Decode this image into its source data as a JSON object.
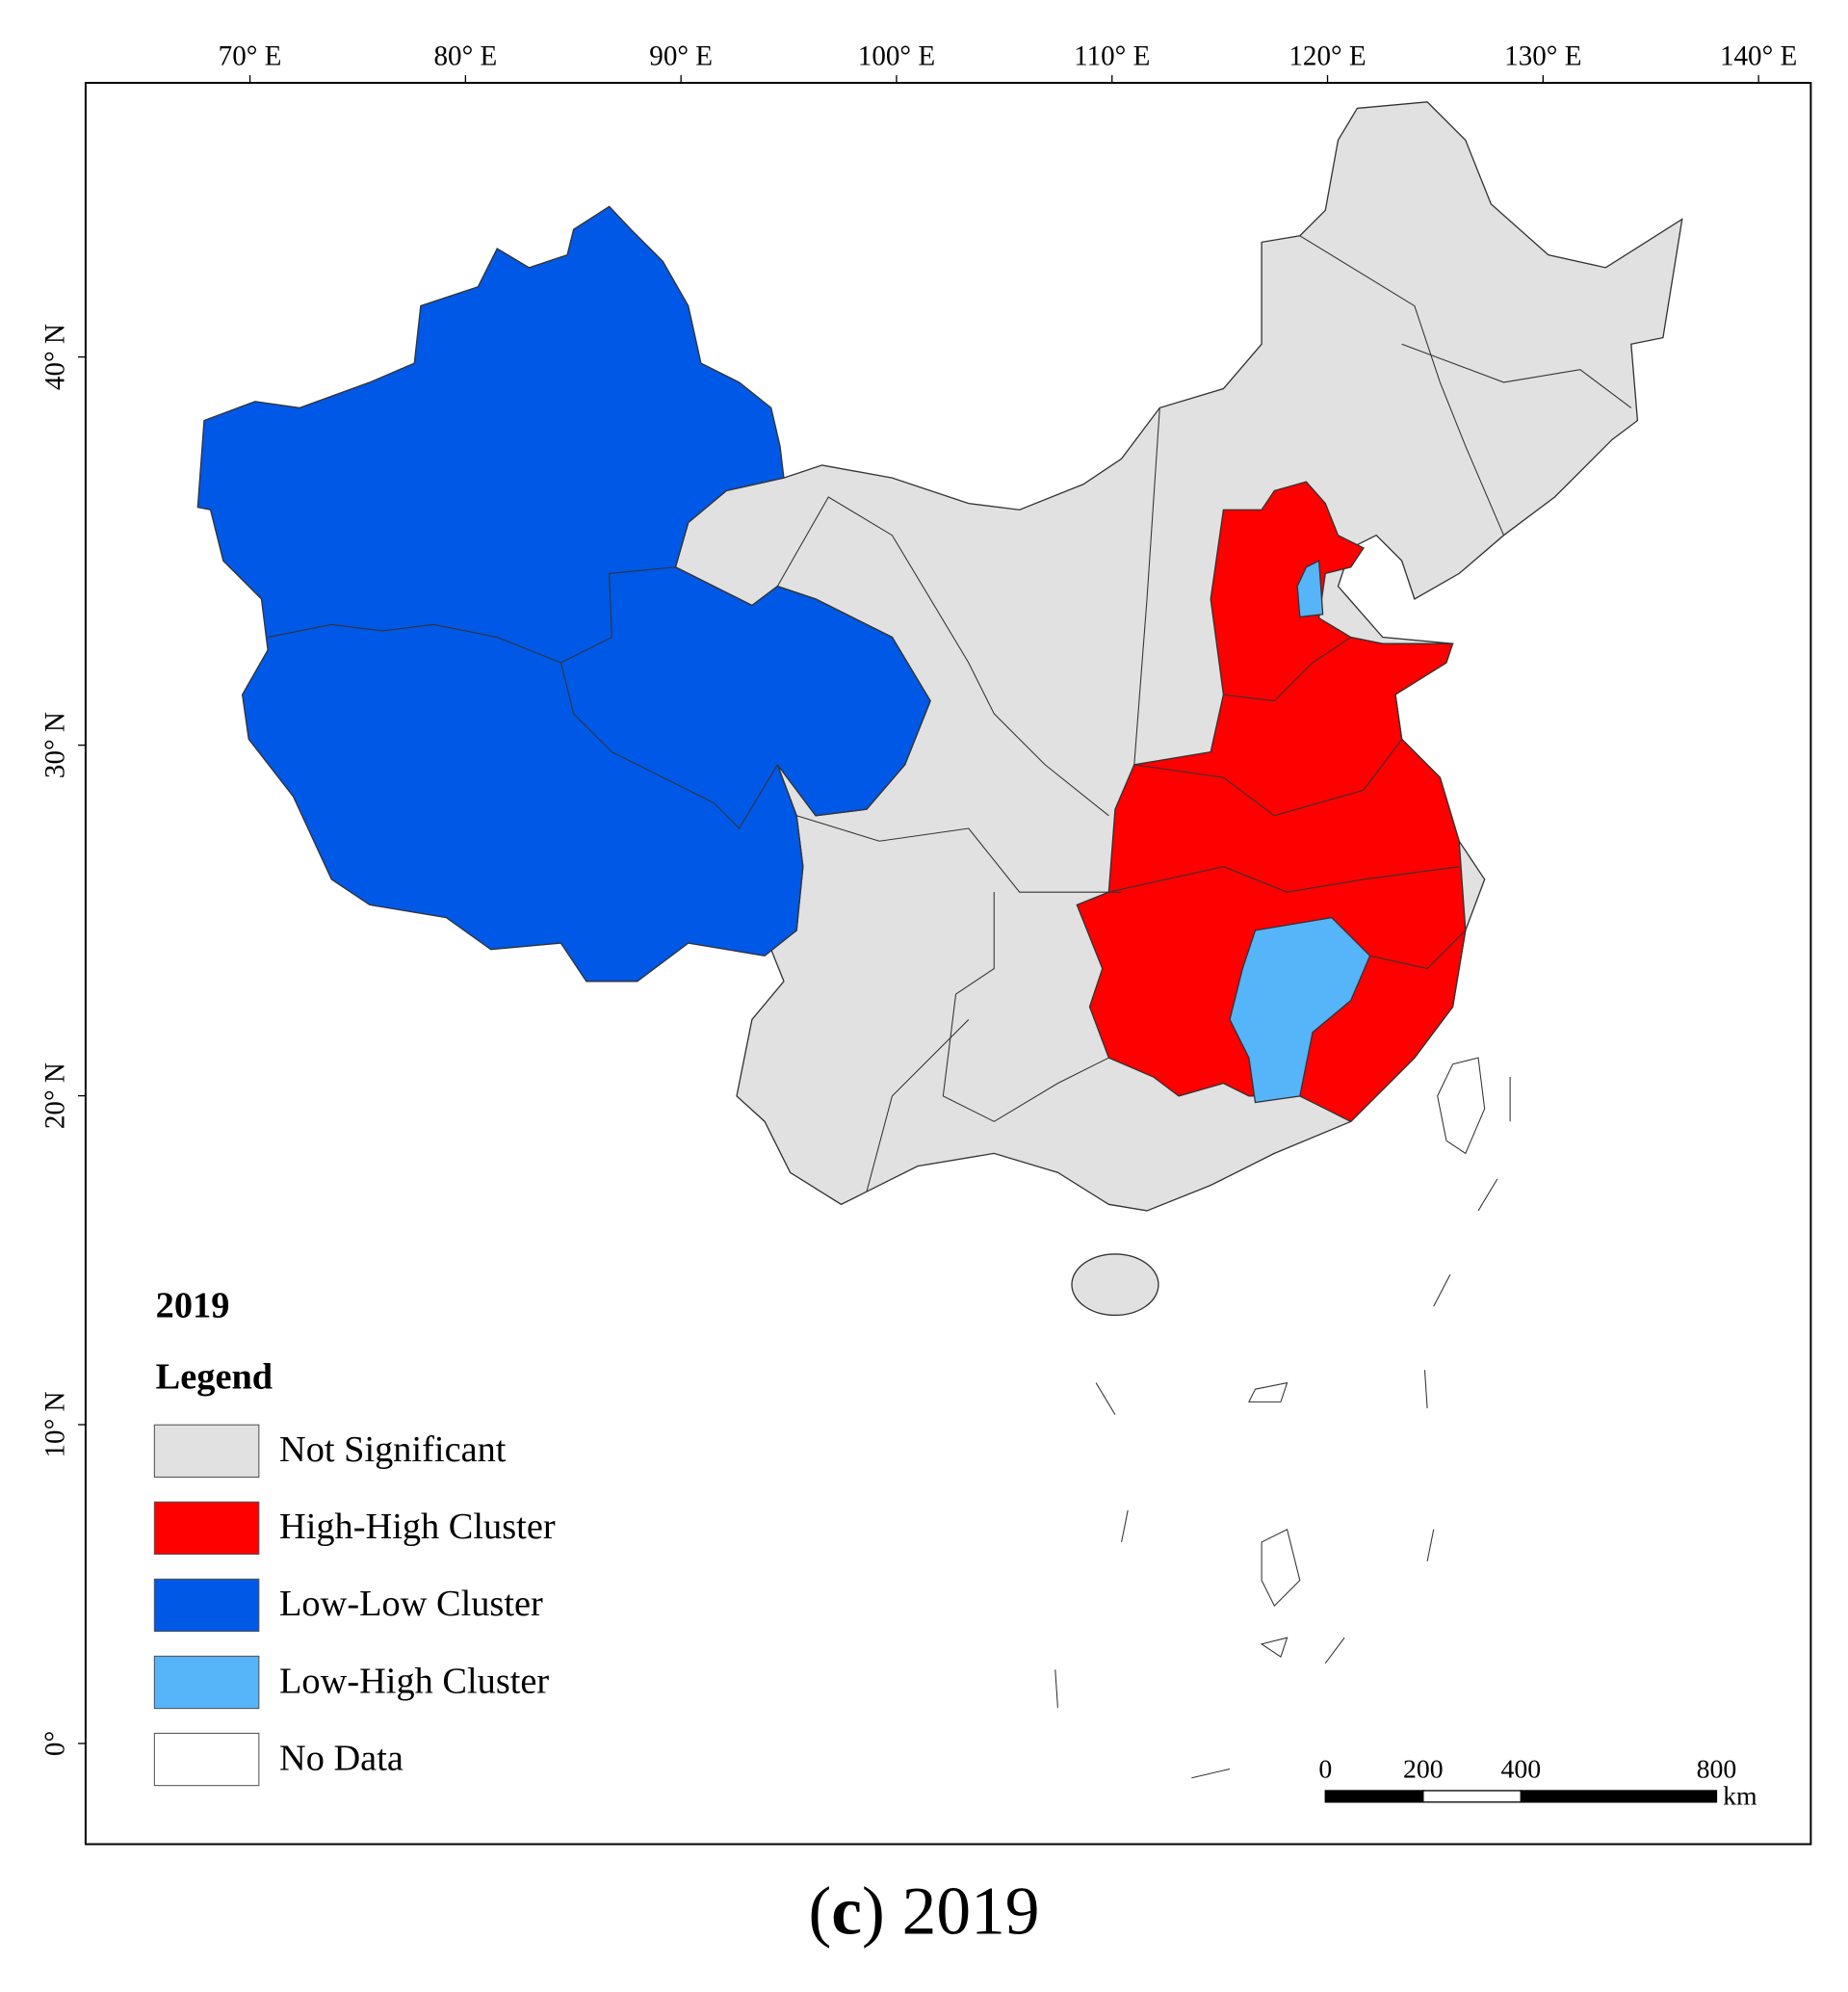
{
  "map": {
    "lon_ticks": [
      {
        "value": 70,
        "label": "70° E"
      },
      {
        "value": 80,
        "label": "80° E"
      },
      {
        "value": 90,
        "label": "90° E"
      },
      {
        "value": 100,
        "label": "100° E"
      },
      {
        "value": 110,
        "label": "110° E"
      },
      {
        "value": 120,
        "label": "120° E"
      },
      {
        "value": 130,
        "label": "130° E"
      },
      {
        "value": 140,
        "label": "140° E"
      }
    ],
    "lat_ticks": [
      {
        "value": 0,
        "label": "0°"
      },
      {
        "value": 10,
        "label": "10° N"
      },
      {
        "value": 20,
        "label": "20° N"
      },
      {
        "value": 30,
        "label": "30° N"
      },
      {
        "value": 40,
        "label": "40° N"
      }
    ],
    "legend": {
      "year": "2019",
      "title": "Legend",
      "items": [
        {
          "label": "Not Significant",
          "color": "#e1e1e1"
        },
        {
          "label": "High-High Cluster",
          "color": "#ff0000"
        },
        {
          "label": "Low-Low Cluster",
          "color": "#0058e6"
        },
        {
          "label": "Low-High Cluster",
          "color": "#56b4f8"
        },
        {
          "label": "No Data",
          "color": "#ffffff"
        }
      ]
    },
    "scale_bar": {
      "ticks": [
        0,
        200,
        400,
        800
      ],
      "unit": "km"
    }
  },
  "caption": [
    "(",
    "c",
    ") 2019"
  ]
}
